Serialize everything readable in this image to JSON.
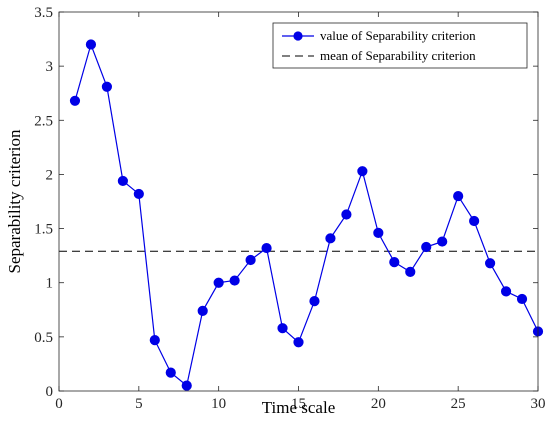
{
  "chart_data": {
    "type": "line",
    "xlabel": "Time scale",
    "ylabel": "Separability criterion",
    "xlim": [
      0,
      30
    ],
    "ylim": [
      0,
      3.5
    ],
    "xticks": [
      0,
      5,
      10,
      15,
      20,
      25,
      30
    ],
    "yticks": [
      0,
      0.5,
      1,
      1.5,
      2,
      2.5,
      3,
      3.5
    ],
    "xtick_labels": [
      "0",
      "5",
      "10",
      "15",
      "20",
      "25",
      "30"
    ],
    "ytick_labels": [
      "0",
      "0.5",
      "1",
      "1.5",
      "2",
      "2.5",
      "3",
      "3.5"
    ],
    "grid": false,
    "legend_position": "top-right",
    "series": [
      {
        "name": "value of Separability criterion",
        "color": "#0000e6",
        "marker": "circle",
        "x": [
          1,
          2,
          3,
          4,
          5,
          6,
          7,
          8,
          9,
          10,
          11,
          12,
          13,
          14,
          15,
          16,
          17,
          18,
          19,
          20,
          21,
          22,
          23,
          24,
          25,
          26,
          27,
          28,
          29,
          30
        ],
        "values": [
          2.68,
          3.2,
          2.81,
          1.94,
          1.82,
          0.47,
          0.17,
          0.05,
          0.74,
          1.0,
          1.02,
          1.21,
          1.32,
          0.58,
          0.45,
          0.83,
          1.41,
          1.63,
          2.03,
          1.46,
          1.19,
          1.1,
          1.33,
          1.38,
          1.8,
          1.57,
          1.18,
          0.92,
          0.85,
          0.55
        ]
      }
    ],
    "reference_lines": [
      {
        "name": "mean of Separability criterion",
        "y": 1.29,
        "style": "dashed",
        "color": "#000000"
      }
    ]
  }
}
